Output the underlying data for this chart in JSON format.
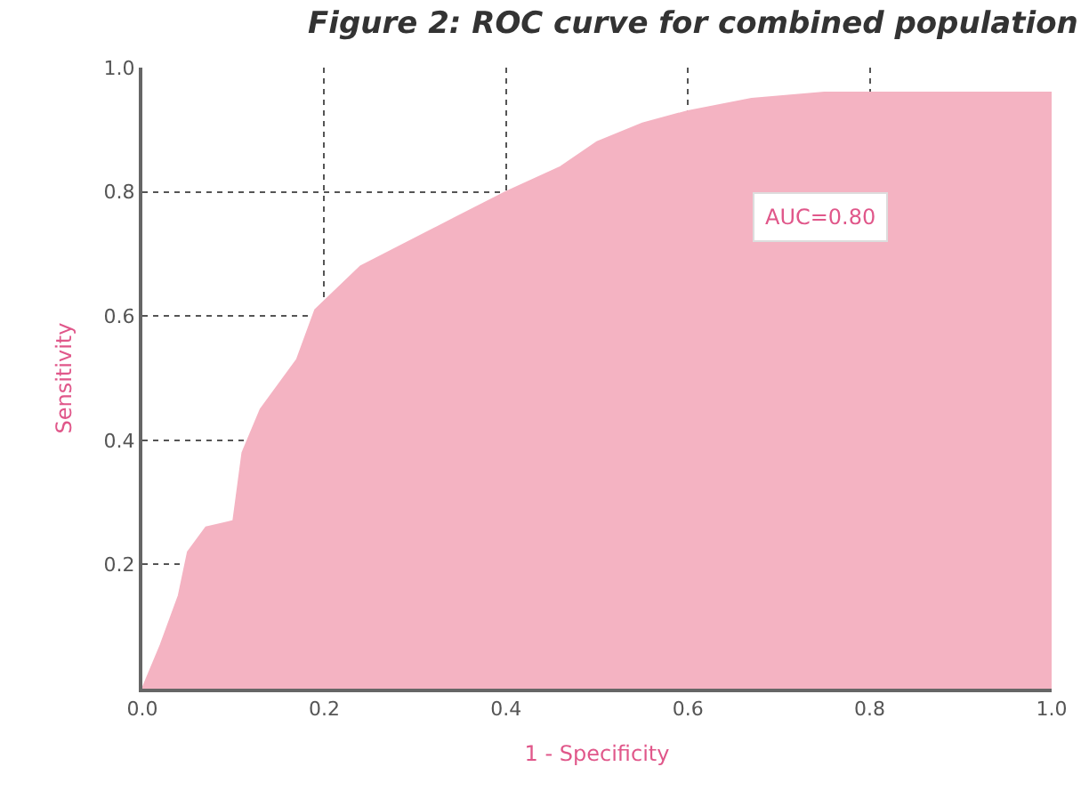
{
  "chart_data": {
    "type": "area",
    "title": "Figure 2: ROC curve for combined population",
    "xlabel": "1 - Specificity",
    "ylabel": "Sensitivity",
    "x": [
      0,
      0.02,
      0.04,
      0.05,
      0.07,
      0.1,
      0.11,
      0.13,
      0.17,
      0.19,
      0.24,
      0.32,
      0.4,
      0.46,
      0.5,
      0.55,
      0.6,
      0.67,
      0.75,
      0.85,
      1.0
    ],
    "series": [
      {
        "color": "#f4b3c2",
        "values": [
          0,
          0.07,
          0.15,
          0.22,
          0.26,
          0.27,
          0.38,
          0.45,
          0.53,
          0.61,
          0.68,
          0.74,
          0.8,
          0.84,
          0.88,
          0.91,
          0.93,
          0.95,
          0.96,
          0.96,
          0.96
        ]
      }
    ],
    "xlim": [
      0,
      1.0
    ],
    "ylim": [
      0,
      1.0
    ],
    "xticks": [
      {
        "value": 0,
        "label": "0.0"
      },
      0.2,
      0.4,
      0.6,
      0.8,
      {
        "value": 1.0,
        "label": "1.0"
      }
    ],
    "yticks": [
      0.2,
      0.4,
      0.6,
      0.8,
      {
        "value": 1.0,
        "label": "1.0"
      }
    ],
    "grid": true,
    "line_style": "dotted",
    "annotations": [
      "AUC=0.80"
    ]
  }
}
